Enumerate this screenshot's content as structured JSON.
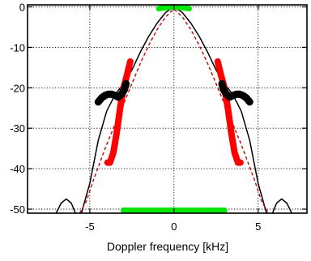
{
  "chart_data": {
    "type": "line",
    "title": "",
    "xlabel": "Doppler frequency [kHz]",
    "ylabel": "",
    "xlim": [
      -8.7,
      7.9
    ],
    "ylim": [
      -51,
      0.5
    ],
    "x_ticks": [
      -5,
      0,
      5
    ],
    "x_tick_labels": [
      "-5",
      "0",
      "5"
    ],
    "y_ticks": [
      0,
      -10,
      -20,
      -30,
      -40,
      -50
    ],
    "y_tick_labels": [
      "0",
      "-10",
      "-20",
      "-30",
      "-40",
      "-50"
    ],
    "grid": true,
    "legend": "none",
    "colors": {
      "solid_curve": "#000000",
      "dashed_curve": "#cc0000",
      "red_markers": "#ff0000",
      "green_markers": "#00e600",
      "black_markers": "#000000"
    },
    "series": [
      {
        "style": "solid-black",
        "segments": [
          {
            "x": [
              -7.0,
              -6.7,
              -6.4,
              -6.1,
              -5.85
            ],
            "y": [
              -51.0,
              -48.5,
              -47.5,
              -48.5,
              -51.0
            ]
          },
          {
            "x": [
              -5.5,
              -5.0,
              -4.5,
              -4.0,
              -3.5,
              -3.0,
              -2.5,
              -2.0,
              -1.5,
              -1.0,
              -0.5,
              0.0,
              0.5,
              1.0,
              1.5,
              2.0,
              2.5,
              3.0,
              3.5,
              4.0,
              4.5,
              5.0,
              5.5
            ],
            "y": [
              -51.0,
              -43.6,
              -33.0,
              -25.8,
              -21.7,
              -19.0,
              -15.6,
              -11.2,
              -7.3,
              -4.0,
              -1.4,
              0.0,
              -1.4,
              -4.0,
              -7.3,
              -11.2,
              -15.6,
              -19.0,
              -21.7,
              -25.8,
              -33.0,
              -43.6,
              -51.0
            ]
          },
          {
            "x": [
              5.85,
              6.1,
              6.4,
              6.7,
              7.0
            ],
            "y": [
              -51.0,
              -48.5,
              -47.5,
              -48.5,
              -51.0
            ]
          }
        ]
      },
      {
        "style": "dashed-red",
        "segments": [
          {
            "x": [
              -5.6,
              -5.2,
              -4.8,
              -4.4,
              -4.0,
              -3.5,
              -3.0,
              -2.5,
              -2.0,
              -1.5,
              -1.0,
              -0.5,
              0.0,
              0.5,
              1.0,
              1.5,
              2.0,
              2.5,
              3.0,
              3.5,
              4.0,
              4.4,
              4.8,
              5.2,
              5.6
            ],
            "y": [
              -51.0,
              -48.0,
              -43.0,
              -38.5,
              -34.0,
              -29.0,
              -24.0,
              -19.0,
              -14.0,
              -9.5,
              -5.6,
              -2.5,
              -0.5,
              -2.5,
              -5.6,
              -9.5,
              -14.0,
              -19.0,
              -24.0,
              -29.0,
              -34.0,
              -38.5,
              -43.0,
              -48.0,
              -51.0
            ]
          }
        ]
      }
    ],
    "markers": [
      {
        "color": "red",
        "x": [
          -3.95,
          -3.8,
          -3.6,
          -3.4,
          -3.2,
          -3.0,
          -2.8,
          -2.6
        ],
        "y": [
          -38.5,
          -38.5,
          -36.0,
          -31.0,
          -25.0,
          -20.0,
          -17.0,
          -13.5
        ]
      },
      {
        "color": "red",
        "x": [
          2.6,
          2.8,
          3.0,
          3.2,
          3.4,
          3.6,
          3.8,
          3.95
        ],
        "y": [
          -13.5,
          -17.0,
          -20.0,
          -25.0,
          -31.0,
          -36.0,
          -38.5,
          -38.5
        ]
      },
      {
        "color": "black",
        "x": [
          -4.5,
          -4.3,
          -4.1,
          -3.9,
          -3.7,
          -3.5,
          -3.3,
          -3.1,
          -2.95,
          -2.85
        ],
        "y": [
          -23.5,
          -22.5,
          -21.9,
          -21.6,
          -21.6,
          -21.9,
          -22.3,
          -21.5,
          -20.5,
          -19.0
        ]
      },
      {
        "color": "black",
        "x": [
          2.85,
          2.95,
          3.1,
          3.3,
          3.5,
          3.7,
          3.9,
          4.1,
          4.3,
          4.5
        ],
        "y": [
          -19.0,
          -20.5,
          -21.5,
          -22.3,
          -21.9,
          -21.6,
          -21.6,
          -21.9,
          -22.5,
          -23.5
        ]
      },
      {
        "color": "green",
        "x": [
          -0.9,
          -0.6,
          -0.3,
          0.0,
          0.3,
          0.6,
          0.9
        ],
        "y": [
          -0.4,
          -0.2,
          -0.1,
          0.0,
          -0.1,
          -0.2,
          -0.4
        ]
      },
      {
        "color": "green",
        "x": [
          -3.0,
          -2.0,
          -1.0,
          0.0,
          1.0,
          2.0,
          3.0
        ],
        "y": [
          -50.3,
          -50.3,
          -50.3,
          -50.3,
          -50.3,
          -50.3,
          -50.3
        ]
      }
    ]
  }
}
